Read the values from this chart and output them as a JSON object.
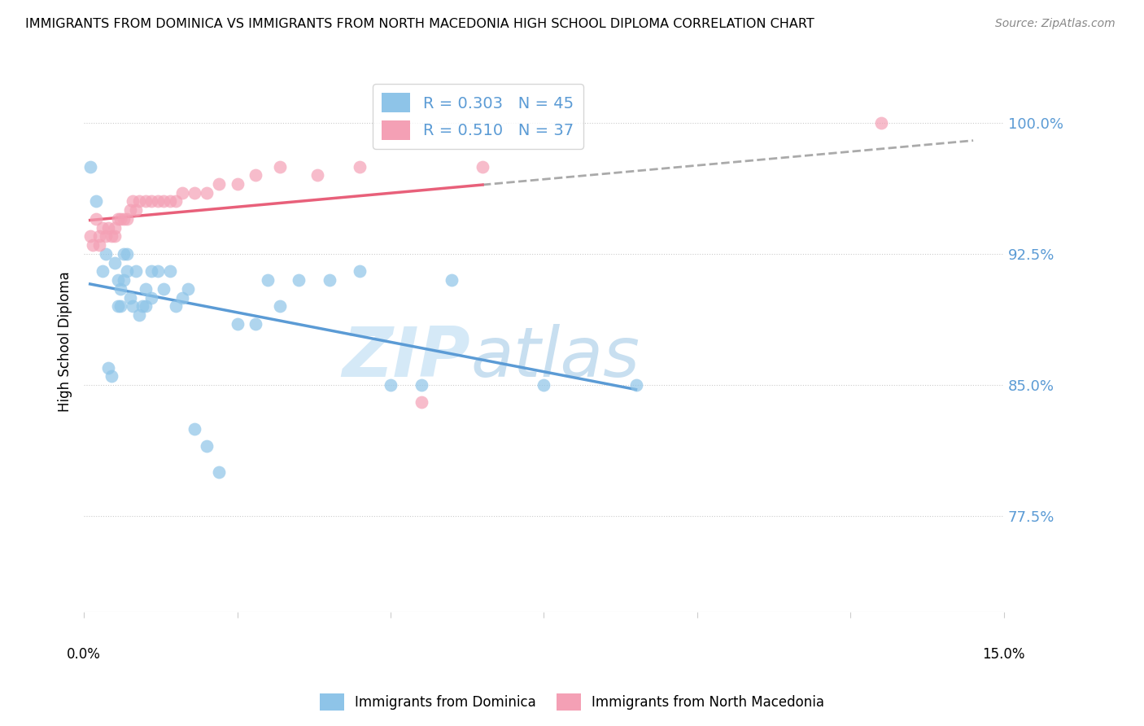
{
  "title": "IMMIGRANTS FROM DOMINICA VS IMMIGRANTS FROM NORTH MACEDONIA HIGH SCHOOL DIPLOMA CORRELATION CHART",
  "source": "Source: ZipAtlas.com",
  "ylabel": "High School Diploma",
  "ytick_labels": [
    "77.5%",
    "85.0%",
    "92.5%",
    "100.0%"
  ],
  "ytick_values": [
    77.5,
    85.0,
    92.5,
    100.0
  ],
  "xlim": [
    0.0,
    15.0
  ],
  "ylim": [
    72.0,
    103.0
  ],
  "legend_r1": "R = 0.303",
  "legend_n1": "N = 45",
  "legend_r2": "R = 0.510",
  "legend_n2": "N = 37",
  "legend_label1": "Immigrants from Dominica",
  "legend_label2": "Immigrants from North Macedonia",
  "color_blue": "#8ec4e8",
  "color_pink": "#f4a0b5",
  "color_blue_line": "#5b9bd5",
  "color_pink_line": "#e8607a",
  "watermark_zip": "ZIP",
  "watermark_atlas": "atlas",
  "watermark_color_zip": "#d5e9f7",
  "watermark_color_atlas": "#c8dff0",
  "dominica_x": [
    0.1,
    0.2,
    0.3,
    0.35,
    0.4,
    0.45,
    0.5,
    0.55,
    0.55,
    0.6,
    0.6,
    0.65,
    0.65,
    0.7,
    0.7,
    0.75,
    0.8,
    0.85,
    0.9,
    0.95,
    1.0,
    1.0,
    1.1,
    1.1,
    1.2,
    1.3,
    1.4,
    1.5,
    1.6,
    1.7,
    1.8,
    2.0,
    2.2,
    2.5,
    2.8,
    3.0,
    3.2,
    3.5,
    4.0,
    4.5,
    5.0,
    5.5,
    6.0,
    7.5,
    9.0
  ],
  "dominica_y": [
    97.5,
    95.5,
    91.5,
    92.5,
    86.0,
    85.5,
    92.0,
    91.0,
    89.5,
    90.5,
    89.5,
    92.5,
    91.0,
    92.5,
    91.5,
    90.0,
    89.5,
    91.5,
    89.0,
    89.5,
    90.5,
    89.5,
    91.5,
    90.0,
    91.5,
    90.5,
    91.5,
    89.5,
    90.0,
    90.5,
    82.5,
    81.5,
    80.0,
    88.5,
    88.5,
    91.0,
    89.5,
    91.0,
    91.0,
    91.5,
    85.0,
    85.0,
    91.0,
    85.0,
    85.0
  ],
  "macedonia_x": [
    0.1,
    0.15,
    0.2,
    0.25,
    0.25,
    0.3,
    0.35,
    0.4,
    0.45,
    0.5,
    0.5,
    0.55,
    0.6,
    0.65,
    0.7,
    0.75,
    0.8,
    0.85,
    0.9,
    1.0,
    1.1,
    1.2,
    1.3,
    1.4,
    1.5,
    1.6,
    1.8,
    2.0,
    2.2,
    2.5,
    2.8,
    3.2,
    3.8,
    4.5,
    5.5,
    6.5,
    13.0
  ],
  "macedonia_y": [
    93.5,
    93.0,
    94.5,
    93.5,
    93.0,
    94.0,
    93.5,
    94.0,
    93.5,
    94.0,
    93.5,
    94.5,
    94.5,
    94.5,
    94.5,
    95.0,
    95.5,
    95.0,
    95.5,
    95.5,
    95.5,
    95.5,
    95.5,
    95.5,
    95.5,
    96.0,
    96.0,
    96.0,
    96.5,
    96.5,
    97.0,
    97.5,
    97.0,
    97.5,
    84.0,
    97.5,
    100.0
  ]
}
